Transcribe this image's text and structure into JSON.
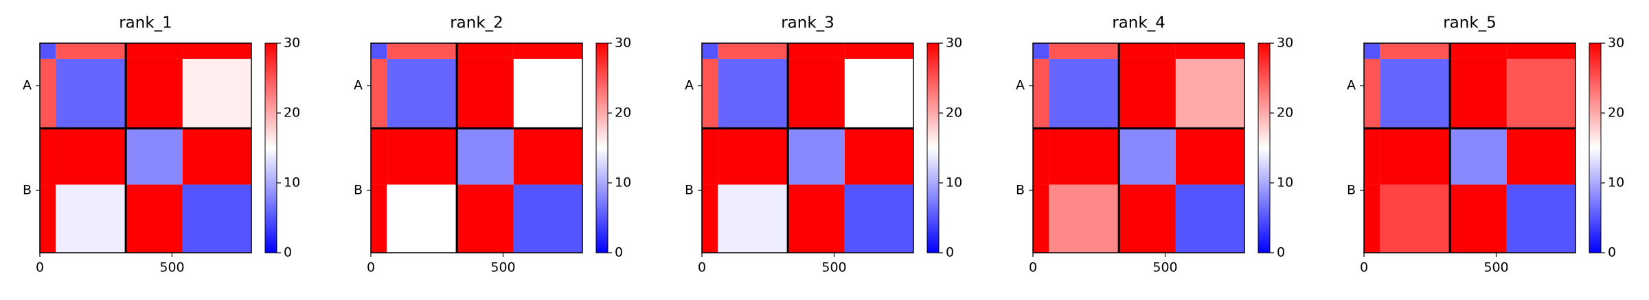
{
  "chart_data": [
    {
      "type": "heatmap",
      "title": "rank_1",
      "edges": [
        0,
        60,
        325,
        540,
        800
      ],
      "values": [
        [
          5,
          25,
          30,
          30
        ],
        [
          25,
          6,
          30,
          16
        ],
        [
          30,
          30,
          8,
          30
        ],
        [
          30,
          14,
          30,
          5
        ]
      ],
      "xlim": [
        0,
        800
      ],
      "xticks": [
        0,
        500
      ],
      "ylim": [
        800,
        0
      ],
      "yticks": [
        {
          "value": 162,
          "label": "A"
        },
        {
          "value": 562,
          "label": "B"
        }
      ],
      "boundaries": [
        325
      ],
      "clim": [
        0,
        30
      ],
      "cticks": [
        0,
        10,
        20,
        30
      ],
      "colors": [
        "#0000ff",
        "#ffffff",
        "#ff0000"
      ]
    },
    {
      "type": "heatmap",
      "title": "rank_2",
      "edges": [
        0,
        60,
        325,
        540,
        800
      ],
      "values": [
        [
          5,
          25,
          30,
          30
        ],
        [
          25,
          6,
          30,
          15
        ],
        [
          30,
          30,
          8,
          30
        ],
        [
          30,
          15,
          30,
          5
        ]
      ],
      "xlim": [
        0,
        800
      ],
      "xticks": [
        0,
        500
      ],
      "ylim": [
        800,
        0
      ],
      "yticks": [
        {
          "value": 162,
          "label": "A"
        },
        {
          "value": 562,
          "label": "B"
        }
      ],
      "boundaries": [
        325
      ],
      "clim": [
        0,
        30
      ],
      "cticks": [
        0,
        10,
        20,
        30
      ],
      "colors": [
        "#0000ff",
        "#ffffff",
        "#ff0000"
      ]
    },
    {
      "type": "heatmap",
      "title": "rank_3",
      "edges": [
        0,
        60,
        325,
        540,
        800
      ],
      "values": [
        [
          5,
          25,
          30,
          30
        ],
        [
          25,
          6,
          30,
          15
        ],
        [
          30,
          30,
          8,
          30
        ],
        [
          30,
          14,
          30,
          5
        ]
      ],
      "xlim": [
        0,
        800
      ],
      "xticks": [
        0,
        500
      ],
      "ylim": [
        800,
        0
      ],
      "yticks": [
        {
          "value": 162,
          "label": "A"
        },
        {
          "value": 562,
          "label": "B"
        }
      ],
      "boundaries": [
        325
      ],
      "clim": [
        0,
        30
      ],
      "cticks": [
        0,
        10,
        20,
        30
      ],
      "colors": [
        "#0000ff",
        "#ffffff",
        "#ff0000"
      ]
    },
    {
      "type": "heatmap",
      "title": "rank_4",
      "edges": [
        0,
        60,
        325,
        540,
        800
      ],
      "values": [
        [
          5,
          25,
          30,
          30
        ],
        [
          25,
          6,
          30,
          20
        ],
        [
          30,
          30,
          8,
          30
        ],
        [
          30,
          22,
          30,
          5
        ]
      ],
      "xlim": [
        0,
        800
      ],
      "xticks": [
        0,
        500
      ],
      "ylim": [
        800,
        0
      ],
      "yticks": [
        {
          "value": 162,
          "label": "A"
        },
        {
          "value": 562,
          "label": "B"
        }
      ],
      "boundaries": [
        325
      ],
      "clim": [
        0,
        30
      ],
      "cticks": [
        0,
        10,
        20,
        30
      ],
      "colors": [
        "#0000ff",
        "#ffffff",
        "#ff0000"
      ]
    },
    {
      "type": "heatmap",
      "title": "rank_5",
      "edges": [
        0,
        60,
        325,
        540,
        800
      ],
      "values": [
        [
          5,
          25,
          30,
          30
        ],
        [
          25,
          6,
          30,
          25
        ],
        [
          30,
          30,
          8,
          30
        ],
        [
          30,
          26,
          30,
          5
        ]
      ],
      "xlim": [
        0,
        800
      ],
      "xticks": [
        0,
        500
      ],
      "ylim": [
        800,
        0
      ],
      "yticks": [
        {
          "value": 162,
          "label": "A"
        },
        {
          "value": 562,
          "label": "B"
        }
      ],
      "boundaries": [
        325
      ],
      "clim": [
        0,
        30
      ],
      "cticks": [
        0,
        10,
        20,
        30
      ],
      "colors": [
        "#0000ff",
        "#ffffff",
        "#ff0000"
      ]
    }
  ]
}
